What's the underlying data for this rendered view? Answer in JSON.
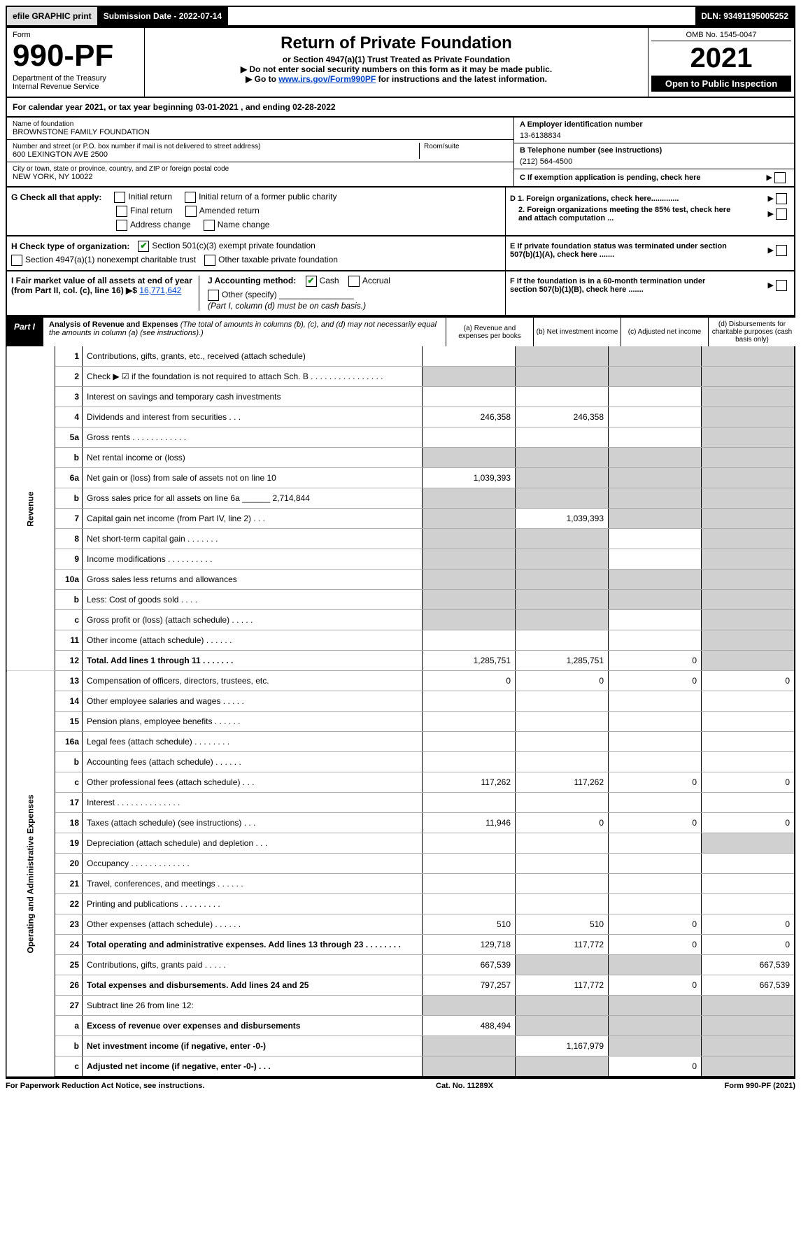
{
  "topbar": {
    "efile": "efile GRAPHIC print",
    "subdate_label": "Submission Date - 2022-07-14",
    "dln": "DLN: 93491195005252"
  },
  "header": {
    "form_label": "Form",
    "form_num": "990-PF",
    "dept": "Department of the Treasury",
    "irs": "Internal Revenue Service",
    "title": "Return of Private Foundation",
    "subtitle": "or Section 4947(a)(1) Trust Treated as Private Foundation",
    "note1": "▶ Do not enter social security numbers on this form as it may be made public.",
    "note2_pre": "▶ Go to ",
    "note2_link": "www.irs.gov/Form990PF",
    "note2_post": " for instructions and the latest information.",
    "omb": "OMB No. 1545-0047",
    "year": "2021",
    "open": "Open to Public Inspection"
  },
  "calyear": "For calendar year 2021, or tax year beginning 03-01-2021                               , and ending 02-28-2022",
  "id": {
    "name_label": "Name of foundation",
    "name": "BROWNSTONE FAMILY FOUNDATION",
    "addr_label": "Number and street (or P.O. box number if mail is not delivered to street address)",
    "addr": "600 LEXINGTON AVE 2500",
    "room_label": "Room/suite",
    "city_label": "City or town, state or province, country, and ZIP or foreign postal code",
    "city": "NEW YORK, NY  10022",
    "a_label": "A Employer identification number",
    "a_val": "13-6138834",
    "b_label": "B Telephone number (see instructions)",
    "b_val": "(212) 564-4500",
    "c_label": "C If exemption application is pending, check here"
  },
  "g": {
    "label": "G Check all that apply:",
    "initial": "Initial return",
    "initial_former": "Initial return of a former public charity",
    "final": "Final return",
    "amended": "Amended return",
    "addr_change": "Address change",
    "name_change": "Name change"
  },
  "d": {
    "d1": "D 1. Foreign organizations, check here.............",
    "d2": "2. Foreign organizations meeting the 85% test, check here and attach computation ..."
  },
  "h": {
    "label": "H Check type of organization:",
    "opt1": "Section 501(c)(3) exempt private foundation",
    "opt2": "Section 4947(a)(1) nonexempt charitable trust",
    "opt3": "Other taxable private foundation"
  },
  "e": "E  If private foundation status was terminated under section 507(b)(1)(A), check here .......",
  "i": {
    "label": "I Fair market value of all assets at end of year (from Part II, col. (c), line 16) ▶$",
    "val": "16,771,642"
  },
  "j": {
    "label": "J Accounting method:",
    "cash": "Cash",
    "accrual": "Accrual",
    "other": "Other (specify)",
    "note": "(Part I, column (d) must be on cash basis.)"
  },
  "f": "F  If the foundation is in a 60-month termination under section 507(b)(1)(B), check here .......",
  "part1": {
    "label": "Part I",
    "title": "Analysis of Revenue and Expenses",
    "title_note": " (The total of amounts in columns (b), (c), and (d) may not necessarily equal the amounts in column (a) (see instructions).)",
    "col_a": "(a)   Revenue and expenses per books",
    "col_b": "(b)   Net investment income",
    "col_c": "(c)  Adjusted net income",
    "col_d": "(d)  Disbursements for charitable purposes (cash basis only)"
  },
  "vlabels": {
    "revenue": "Revenue",
    "opexp": "Operating and Administrative Expenses"
  },
  "rows": [
    {
      "n": "1",
      "desc": "Contributions, gifts, grants, etc., received (attach schedule)",
      "a": "",
      "b": "_sh",
      "c": "_sh",
      "d": "_sh"
    },
    {
      "n": "2",
      "desc": "Check ▶ ☑ if the foundation is not required to attach Sch. B  .  .  .  .  .  .  .  .  .  .  .  .  .  .  .  .",
      "a": "_sh",
      "b": "_sh",
      "c": "_sh",
      "d": "_sh"
    },
    {
      "n": "3",
      "desc": "Interest on savings and temporary cash investments",
      "a": "",
      "b": "",
      "c": "",
      "d": "_sh"
    },
    {
      "n": "4",
      "desc": "Dividends and interest from securities  .  .  .",
      "a": "246,358",
      "b": "246,358",
      "c": "",
      "d": "_sh"
    },
    {
      "n": "5a",
      "desc": "Gross rents  .  .  .  .  .  .  .  .  .  .  .  .",
      "a": "",
      "b": "",
      "c": "",
      "d": "_sh"
    },
    {
      "n": "b",
      "desc": "Net rental income or (loss)  ",
      "a": "_sh",
      "b": "_sh",
      "c": "_sh",
      "d": "_sh"
    },
    {
      "n": "6a",
      "desc": "Net gain or (loss) from sale of assets not on line 10",
      "a": "1,039,393",
      "b": "_sh",
      "c": "_sh",
      "d": "_sh"
    },
    {
      "n": "b",
      "desc": "Gross sales price for all assets on line 6a ______ 2,714,844",
      "a": "_sh",
      "b": "_sh",
      "c": "_sh",
      "d": "_sh"
    },
    {
      "n": "7",
      "desc": "Capital gain net income (from Part IV, line 2)  .  .  .",
      "a": "_sh",
      "b": "1,039,393",
      "c": "_sh",
      "d": "_sh"
    },
    {
      "n": "8",
      "desc": "Net short-term capital gain  .  .  .  .  .  .  .",
      "a": "_sh",
      "b": "_sh",
      "c": "",
      "d": "_sh"
    },
    {
      "n": "9",
      "desc": "Income modifications .  .  .  .  .  .  .  .  .  .",
      "a": "_sh",
      "b": "_sh",
      "c": "",
      "d": "_sh"
    },
    {
      "n": "10a",
      "desc": "Gross sales less returns and allowances",
      "a": "_sh",
      "b": "_sh",
      "c": "_sh",
      "d": "_sh"
    },
    {
      "n": "b",
      "desc": "Less: Cost of goods sold  .  .  .  .",
      "a": "_sh",
      "b": "_sh",
      "c": "_sh",
      "d": "_sh"
    },
    {
      "n": "c",
      "desc": "Gross profit or (loss) (attach schedule)  .  .  .  .  .",
      "a": "_sh",
      "b": "_sh",
      "c": "",
      "d": "_sh"
    },
    {
      "n": "11",
      "desc": "Other income (attach schedule)  .  .  .  .  .  .",
      "a": "",
      "b": "",
      "c": "",
      "d": "_sh"
    },
    {
      "n": "12",
      "desc": "Total. Add lines 1 through 11  .  .  .  .  .  .  .",
      "bold": true,
      "a": "1,285,751",
      "b": "1,285,751",
      "c": "0",
      "d": "_sh"
    },
    {
      "n": "13",
      "desc": "Compensation of officers, directors, trustees, etc.",
      "a": "0",
      "b": "0",
      "c": "0",
      "d": "0"
    },
    {
      "n": "14",
      "desc": "Other employee salaries and wages  .  .  .  .  .",
      "a": "",
      "b": "",
      "c": "",
      "d": ""
    },
    {
      "n": "15",
      "desc": "Pension plans, employee benefits  .  .  .  .  .  .",
      "a": "",
      "b": "",
      "c": "",
      "d": ""
    },
    {
      "n": "16a",
      "desc": "Legal fees (attach schedule) .  .  .  .  .  .  .  .",
      "a": "",
      "b": "",
      "c": "",
      "d": ""
    },
    {
      "n": "b",
      "desc": "Accounting fees (attach schedule) .  .  .  .  .  .",
      "a": "",
      "b": "",
      "c": "",
      "d": ""
    },
    {
      "n": "c",
      "desc": "Other professional fees (attach schedule)  .  .  .",
      "a": "117,262",
      "b": "117,262",
      "c": "0",
      "d": "0"
    },
    {
      "n": "17",
      "desc": "Interest .  .  .  .  .  .  .  .  .  .  .  .  .  .",
      "a": "",
      "b": "",
      "c": "",
      "d": ""
    },
    {
      "n": "18",
      "desc": "Taxes (attach schedule) (see instructions)  .  .  .",
      "a": "11,946",
      "b": "0",
      "c": "0",
      "d": "0"
    },
    {
      "n": "19",
      "desc": "Depreciation (attach schedule) and depletion  .  .  .",
      "a": "",
      "b": "",
      "c": "",
      "d": "_sh"
    },
    {
      "n": "20",
      "desc": "Occupancy .  .  .  .  .  .  .  .  .  .  .  .  .",
      "a": "",
      "b": "",
      "c": "",
      "d": ""
    },
    {
      "n": "21",
      "desc": "Travel, conferences, and meetings .  .  .  .  .  .",
      "a": "",
      "b": "",
      "c": "",
      "d": ""
    },
    {
      "n": "22",
      "desc": "Printing and publications .  .  .  .  .  .  .  .  .",
      "a": "",
      "b": "",
      "c": "",
      "d": ""
    },
    {
      "n": "23",
      "desc": "Other expenses (attach schedule) .  .  .  .  .  .",
      "a": "510",
      "b": "510",
      "c": "0",
      "d": "0"
    },
    {
      "n": "24",
      "desc": "Total operating and administrative expenses. Add lines 13 through 23  .  .  .  .  .  .  .  .",
      "bold": true,
      "a": "129,718",
      "b": "117,772",
      "c": "0",
      "d": "0"
    },
    {
      "n": "25",
      "desc": "Contributions, gifts, grants paid  .  .  .  .  .",
      "a": "667,539",
      "b": "_sh",
      "c": "_sh",
      "d": "667,539"
    },
    {
      "n": "26",
      "desc": "Total expenses and disbursements. Add lines 24 and 25",
      "bold": true,
      "a": "797,257",
      "b": "117,772",
      "c": "0",
      "d": "667,539"
    },
    {
      "n": "27",
      "desc": "Subtract line 26 from line 12:",
      "a": "_sh",
      "b": "_sh",
      "c": "_sh",
      "d": "_sh"
    },
    {
      "n": "a",
      "desc": "Excess of revenue over expenses and disbursements",
      "bold": true,
      "a": "488,494",
      "b": "_sh",
      "c": "_sh",
      "d": "_sh"
    },
    {
      "n": "b",
      "desc": "Net investment income (if negative, enter -0-)",
      "bold": true,
      "a": "_sh",
      "b": "1,167,979",
      "c": "_sh",
      "d": "_sh"
    },
    {
      "n": "c",
      "desc": "Adjusted net income (if negative, enter -0-)  .  .  .",
      "bold": true,
      "a": "_sh",
      "b": "_sh",
      "c": "0",
      "d": "_sh"
    }
  ],
  "footer": {
    "pra": "For Paperwork Reduction Act Notice, see instructions.",
    "cat": "Cat. No. 11289X",
    "form": "Form 990-PF (2021)"
  }
}
